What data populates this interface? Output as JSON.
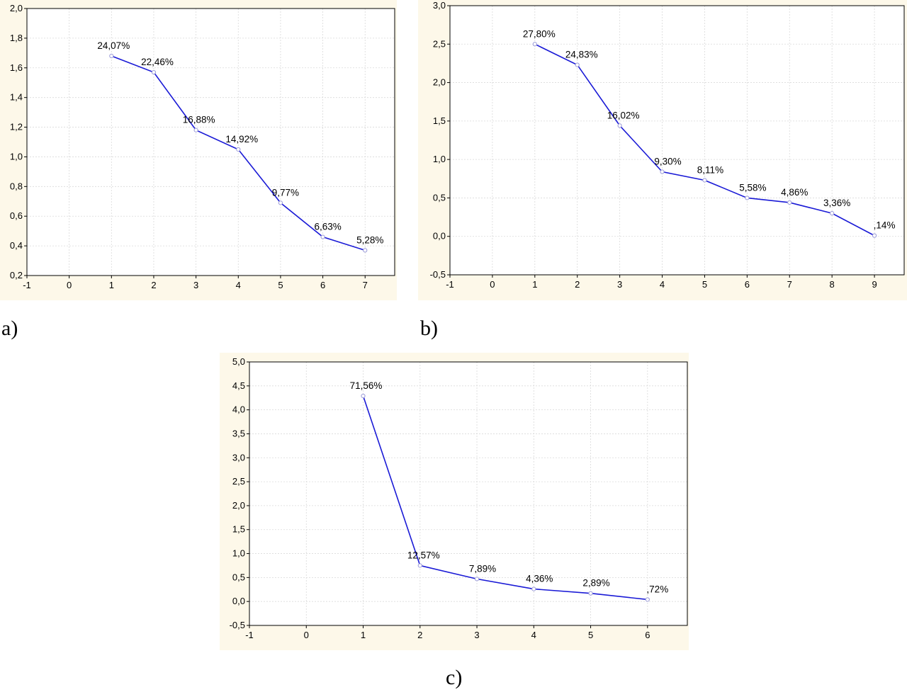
{
  "charts": {
    "a": {
      "label": "a)"
    },
    "b": {
      "label": "b)"
    },
    "c": {
      "label": "c)"
    }
  },
  "colors": {
    "background": "#fdf8e9",
    "line": "#1a1ad6",
    "grid": "#d9d9d9",
    "axis": "#000000"
  },
  "chart_data": [
    {
      "id": "a",
      "type": "line",
      "title": "",
      "xlabel": "",
      "ylabel": "",
      "xlim": [
        -1,
        7.7
      ],
      "ylim": [
        0.2,
        2.0
      ],
      "xticks": [
        -1,
        0,
        1,
        2,
        3,
        4,
        5,
        6,
        7
      ],
      "yticks": [
        0.2,
        0.4,
        0.6,
        0.8,
        1.0,
        1.2,
        1.4,
        1.6,
        1.8,
        2.0
      ],
      "ytick_labels": [
        "0,2",
        "0,4",
        "0,6",
        "0,8",
        "1,0",
        "1,2",
        "1,4",
        "1,6",
        "1,8",
        "2,0"
      ],
      "grid": true,
      "x": [
        1,
        2,
        3,
        4,
        5,
        6,
        7
      ],
      "y": [
        1.68,
        1.57,
        1.18,
        1.05,
        0.69,
        0.46,
        0.37
      ],
      "labels": [
        "24,07%",
        "22,46%",
        "16,88%",
        "14,92%",
        "9,77%",
        "6,63%",
        "5,28%"
      ]
    },
    {
      "id": "b",
      "type": "line",
      "title": "",
      "xlabel": "",
      "ylabel": "",
      "xlim": [
        -1,
        9.7
      ],
      "ylim": [
        -0.5,
        3.0
      ],
      "xticks": [
        -1,
        0,
        1,
        2,
        3,
        4,
        5,
        6,
        7,
        8,
        9
      ],
      "yticks": [
        -0.5,
        0.0,
        0.5,
        1.0,
        1.5,
        2.0,
        2.5,
        3.0
      ],
      "ytick_labels": [
        "-0,5",
        "0,0",
        "0,5",
        "1,0",
        "1,5",
        "2,0",
        "2,5",
        "3,0"
      ],
      "grid": true,
      "x": [
        1,
        2,
        3,
        4,
        5,
        6,
        7,
        8,
        9
      ],
      "y": [
        2.5,
        2.23,
        1.44,
        0.84,
        0.73,
        0.5,
        0.44,
        0.3,
        0.01
      ],
      "labels": [
        "27,80%",
        "24,83%",
        "16,02%",
        "9,30%",
        "8,11%",
        "5,58%",
        "4,86%",
        "3,36%",
        ",14%"
      ]
    },
    {
      "id": "c",
      "type": "line",
      "title": "",
      "xlabel": "",
      "ylabel": "",
      "xlim": [
        -1,
        6.7
      ],
      "ylim": [
        -0.5,
        5.0
      ],
      "xticks": [
        -1,
        0,
        1,
        2,
        3,
        4,
        5,
        6
      ],
      "yticks": [
        -0.5,
        0.0,
        0.5,
        1.0,
        1.5,
        2.0,
        2.5,
        3.0,
        3.5,
        4.0,
        4.5,
        5.0
      ],
      "ytick_labels": [
        "-0,5",
        "0,0",
        "0,5",
        "1,0",
        "1,5",
        "2,0",
        "2,5",
        "3,0",
        "3,5",
        "4,0",
        "4,5",
        "5,0"
      ],
      "grid": true,
      "x": [
        1,
        2,
        3,
        4,
        5,
        6
      ],
      "y": [
        4.29,
        0.75,
        0.47,
        0.26,
        0.17,
        0.04
      ],
      "labels": [
        "71,56%",
        "12,57%",
        "7,89%",
        "4,36%",
        "2,89%",
        ",72%"
      ]
    }
  ]
}
